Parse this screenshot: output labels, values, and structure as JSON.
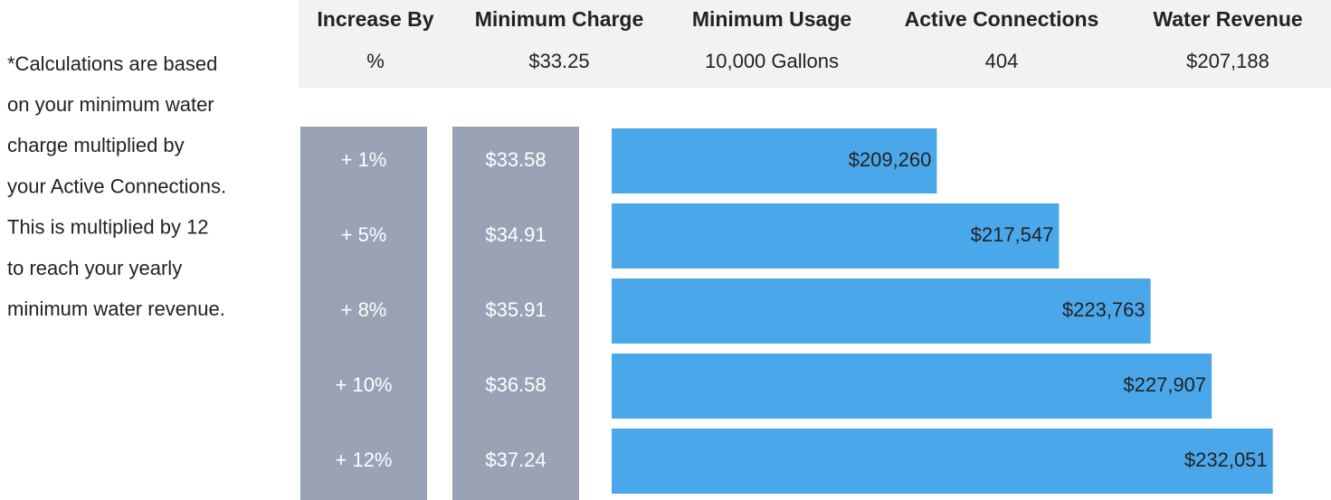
{
  "note": [
    "*Calculations are based",
    "on your minimum water",
    "charge multiplied by",
    "your Active Connections.",
    "This is multiplied by 12",
    "to reach your yearly",
    "minimum water revenue."
  ],
  "header": {
    "columns": [
      "Increase By",
      "Minimum Charge",
      "Minimum Usage",
      "Active Connections",
      "Water Revenue"
    ],
    "values": [
      "%",
      "$33.25",
      "10,000 Gallons",
      "404",
      "$207,188"
    ]
  },
  "chart_data": {
    "type": "hbar",
    "categories": [
      "+ 1%",
      "+ 5%",
      "+ 8%",
      "+ 10%",
      "+ 12%"
    ],
    "minimum_charges": [
      "$33.58",
      "$34.91",
      "$35.91",
      "$36.58",
      "$37.24"
    ],
    "values": [
      209260,
      217547,
      223763,
      227907,
      232051
    ],
    "value_labels": [
      "$209,260",
      "$217,547",
      "$223,763",
      "$227,907",
      "$232,051"
    ],
    "color": "#4aa8ea",
    "xlim": [
      187200,
      236000
    ]
  }
}
